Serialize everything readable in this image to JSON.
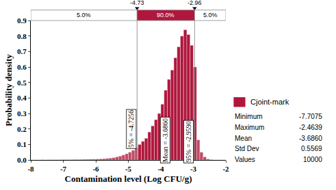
{
  "chart_data": {
    "type": "histogram",
    "xlabel": "Contamination level (Log CFU/g)",
    "ylabel": "Probability density",
    "bins": [
      -7.7,
      -7.6,
      -7.5,
      -7.4,
      -7.3,
      -7.2,
      -7.1,
      -7.0,
      -6.9,
      -6.8,
      -6.7,
      -6.6,
      -6.5,
      -6.4,
      -6.3,
      -6.2,
      -6.1,
      -6.0,
      -5.9,
      -5.8,
      -5.7,
      -5.6,
      -5.5,
      -5.4,
      -5.3,
      -5.2,
      -5.1,
      -5.0,
      -4.9,
      -4.8,
      -4.7,
      -4.6,
      -4.5,
      -4.4,
      -4.3,
      -4.2,
      -4.1,
      -4.0,
      -3.9,
      -3.8,
      -3.7,
      -3.6,
      -3.5,
      -3.4,
      -3.3,
      -3.2,
      -3.1,
      -3.0,
      -2.9,
      -2.8,
      -2.7,
      -2.6,
      -2.5,
      -2.4
    ],
    "values": [
      0.001,
      0,
      0.001,
      0.001,
      0.001,
      0.001,
      0.002,
      0.002,
      0.002,
      0.002,
      0.003,
      0.003,
      0.003,
      0.004,
      0.004,
      0.005,
      0.005,
      0.006,
      0.007,
      0.008,
      0.01,
      0.012,
      0.015,
      0.02,
      0.025,
      0.032,
      0.04,
      0.05,
      0.062,
      0.078,
      0.1,
      0.12,
      0.14,
      0.18,
      0.22,
      0.26,
      0.3,
      0.36,
      0.45,
      0.52,
      0.58,
      0.66,
      0.73,
      0.8,
      0.84,
      0.81,
      0.74,
      0.6,
      0.13,
      0.05,
      0.02,
      0.006,
      0.002
    ],
    "colors": [
      "#c24a64",
      "#c24a64",
      "#c24a64",
      "#c24a64",
      "#c24a64",
      "#c24a64",
      "#c24a64",
      "#c24a64",
      "#c24a64",
      "#c24a64",
      "#c24a64",
      "#c24a64",
      "#c24a64",
      "#c24a64",
      "#c24a64",
      "#c24a64",
      "#c24a64",
      "#c24a64",
      "#c24a64",
      "#c24a64",
      "#c24a64",
      "#c24a64",
      "#c24a64",
      "#c24a64",
      "#c24a64",
      "#c24a64",
      "#c24a64",
      "#c24a64",
      "#c24a64",
      "#c24a64",
      "#b0173d",
      "#b0173d",
      "#b0173d",
      "#b0173d",
      "#b0173d",
      "#b0173d",
      "#b0173d",
      "#b0173d",
      "#b0173d",
      "#b0173d",
      "#b0173d",
      "#b0173d",
      "#b0173d",
      "#b0173d",
      "#b0173d",
      "#b0173d",
      "#b0173d",
      "#b0173d",
      "#c24a64",
      "#c24a64",
      "#c24a64",
      "#c24a64",
      "#c24a64"
    ],
    "series_name": "Cjoint-mark",
    "color": "#b0173d",
    "xlim": [
      -8,
      -2
    ],
    "xticks": [
      -8,
      -7,
      -6,
      -5,
      -4,
      -3,
      -2
    ],
    "ylim": [
      0,
      0.9
    ],
    "yticks": [
      {
        "value": 0,
        "label": "0.0"
      },
      0.1,
      0.2,
      0.3,
      0.4,
      0.5,
      0.6,
      0.7,
      0.8,
      0.9
    ],
    "grid": false,
    "delimiters": [
      {
        "value": -4.73,
        "label": "-4.73"
      },
      {
        "value": -2.96,
        "label": "-2.96"
      }
    ],
    "band": [
      {
        "value": 5,
        "label": "5.0%"
      },
      {
        "value": 90,
        "label": "90.0%"
      },
      {
        "value": 5,
        "label": "5.0%"
      }
    ],
    "markers": [
      {
        "value": -4.7256,
        "label": "5% = -4.7256",
        "y": 0.2
      },
      {
        "value": -3.686,
        "label": "Mean = -3.6860",
        "y": 0.13
      },
      {
        "value": -2.959,
        "label": "95% = -2.9590",
        "y": 0.12
      }
    ],
    "stats": [
      {
        "name": "Minimum",
        "value": -7.7075,
        "label": "-7.7075"
      },
      {
        "name": "Maximum",
        "value": -2.4639,
        "label": "-2.4639"
      },
      {
        "name": "Mean",
        "value": -3.686,
        "label": "-3.6860"
      },
      {
        "name": "Std Dev",
        "value": 0.5569,
        "label": "0.5569"
      },
      {
        "name": "Values",
        "value": 10000,
        "label": "10000"
      }
    ]
  }
}
